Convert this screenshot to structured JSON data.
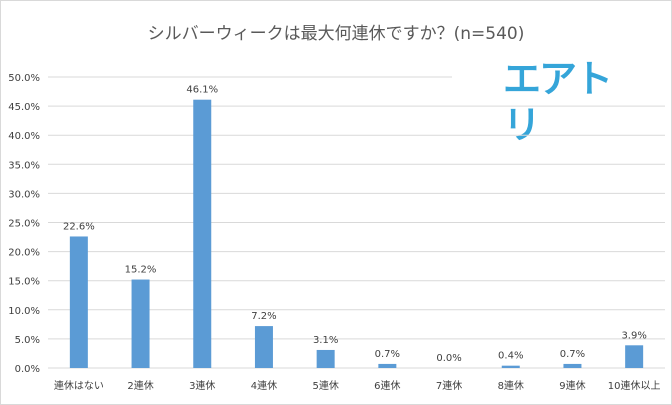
{
  "chart_data": {
    "type": "bar",
    "title": "シルバーウィークは最大何連休ですか？(n=540)",
    "categories": [
      "連休はない",
      "2連休",
      "3連休",
      "4連休",
      "5連休",
      "6連休",
      "7連休",
      "8連休",
      "9連休",
      "10連休以上"
    ],
    "values": [
      22.6,
      15.2,
      46.1,
      7.2,
      3.1,
      0.7,
      0.0,
      0.4,
      0.7,
      3.9
    ],
    "value_labels": [
      "22.6%",
      "15.2%",
      "46.1%",
      "7.2%",
      "3.1%",
      "0.7%",
      "0.0%",
      "0.4%",
      "0.7%",
      "3.9%"
    ],
    "y_ticks": [
      0,
      5,
      10,
      15,
      20,
      25,
      30,
      35,
      40,
      45,
      50
    ],
    "y_tick_labels": [
      "0.0%",
      "5.0%",
      "10.0%",
      "15.0%",
      "20.0%",
      "25.0%",
      "30.0%",
      "35.0%",
      "40.0%",
      "45.0%",
      "50.0%"
    ],
    "ylim": [
      0,
      50
    ],
    "grid": true,
    "legend": "none",
    "colors": {
      "bar": "#5b9bd5",
      "grid": "#d9d9d9",
      "text": "#404040",
      "logo": "#35a5d9"
    }
  },
  "logo_text": "エアトリ"
}
